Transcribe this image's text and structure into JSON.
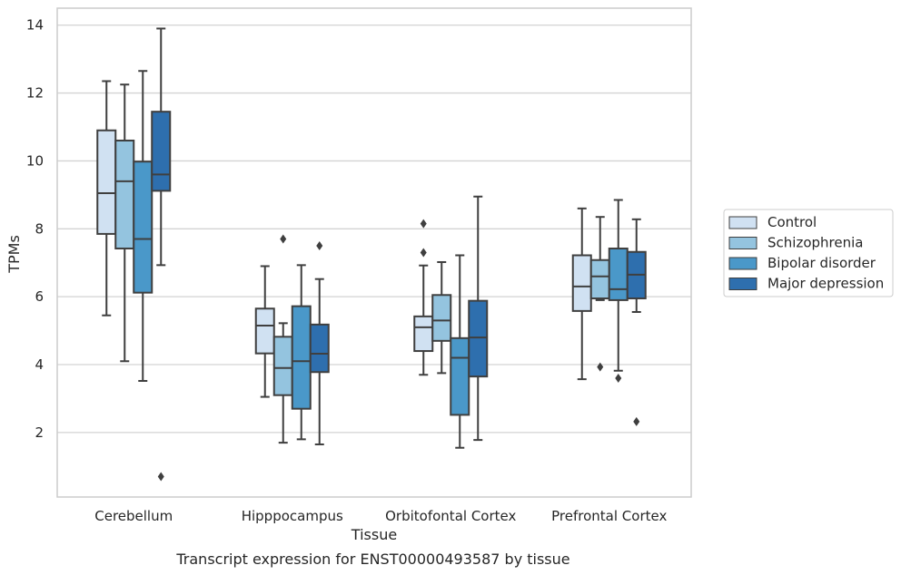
{
  "caption": "Transcript expression for ENST00000493587 by tissue",
  "chart_data": {
    "type": "box",
    "xlabel": "Tissue",
    "ylabel": "TPMs",
    "ylim": [
      0.1,
      14.5
    ],
    "yticks": [
      2,
      4,
      6,
      8,
      10,
      12,
      14
    ],
    "grid": "horizontal",
    "legend_position": "right",
    "categories": [
      "Cerebellum",
      "Hipppocampus",
      "Orbitofontal Cortex",
      "Prefrontal Cortex"
    ],
    "series": [
      {
        "name": "Control",
        "color": "#d0e1f2",
        "boxes": [
          {
            "whislo": 5.45,
            "q1": 7.85,
            "med": 9.05,
            "q3": 10.9,
            "whishi": 12.35,
            "fliers": []
          },
          {
            "whislo": 3.05,
            "q1": 4.33,
            "med": 5.15,
            "q3": 5.65,
            "whishi": 6.9,
            "fliers": []
          },
          {
            "whislo": 3.7,
            "q1": 4.4,
            "med": 5.1,
            "q3": 5.42,
            "whishi": 6.92,
            "fliers": [
              7.3,
              8.15
            ]
          },
          {
            "whislo": 3.57,
            "q1": 5.58,
            "med": 6.3,
            "q3": 7.22,
            "whishi": 8.6,
            "fliers": []
          }
        ]
      },
      {
        "name": "Schizophrenia",
        "color": "#94c4df",
        "boxes": [
          {
            "whislo": 4.1,
            "q1": 7.42,
            "med": 9.4,
            "q3": 10.6,
            "whishi": 12.25,
            "fliers": []
          },
          {
            "whislo": 1.7,
            "q1": 3.1,
            "med": 3.9,
            "q3": 4.82,
            "whishi": 5.22,
            "fliers": [
              7.7
            ]
          },
          {
            "whislo": 3.75,
            "q1": 4.7,
            "med": 5.3,
            "q3": 6.05,
            "whishi": 7.02,
            "fliers": []
          },
          {
            "whislo": 5.9,
            "q1": 5.95,
            "med": 6.6,
            "q3": 7.08,
            "whishi": 8.35,
            "fliers": [
              3.93
            ]
          }
        ]
      },
      {
        "name": "Bipolar disorder",
        "color": "#4a98c9",
        "boxes": [
          {
            "whislo": 3.52,
            "q1": 6.12,
            "med": 7.7,
            "q3": 9.98,
            "whishi": 12.65,
            "fliers": []
          },
          {
            "whislo": 1.8,
            "q1": 2.7,
            "med": 4.1,
            "q3": 5.72,
            "whishi": 6.93,
            "fliers": []
          },
          {
            "whislo": 1.55,
            "q1": 2.52,
            "med": 4.2,
            "q3": 4.78,
            "whishi": 7.22,
            "fliers": []
          },
          {
            "whislo": 3.82,
            "q1": 5.9,
            "med": 6.22,
            "q3": 7.42,
            "whishi": 8.85,
            "fliers": [
              3.6
            ]
          }
        ]
      },
      {
        "name": "Major depression",
        "color": "#2e6fae",
        "boxes": [
          {
            "whislo": 6.93,
            "q1": 9.12,
            "med": 9.6,
            "q3": 11.45,
            "whishi": 13.9,
            "fliers": [
              0.7
            ]
          },
          {
            "whislo": 1.65,
            "q1": 3.78,
            "med": 4.32,
            "q3": 5.18,
            "whishi": 6.52,
            "fliers": [
              7.5
            ]
          },
          {
            "whislo": 1.78,
            "q1": 3.65,
            "med": 4.8,
            "q3": 5.88,
            "whishi": 8.95,
            "fliers": []
          },
          {
            "whislo": 5.55,
            "q1": 5.95,
            "med": 6.65,
            "q3": 7.32,
            "whishi": 8.28,
            "fliers": [
              2.32
            ]
          }
        ]
      }
    ]
  }
}
